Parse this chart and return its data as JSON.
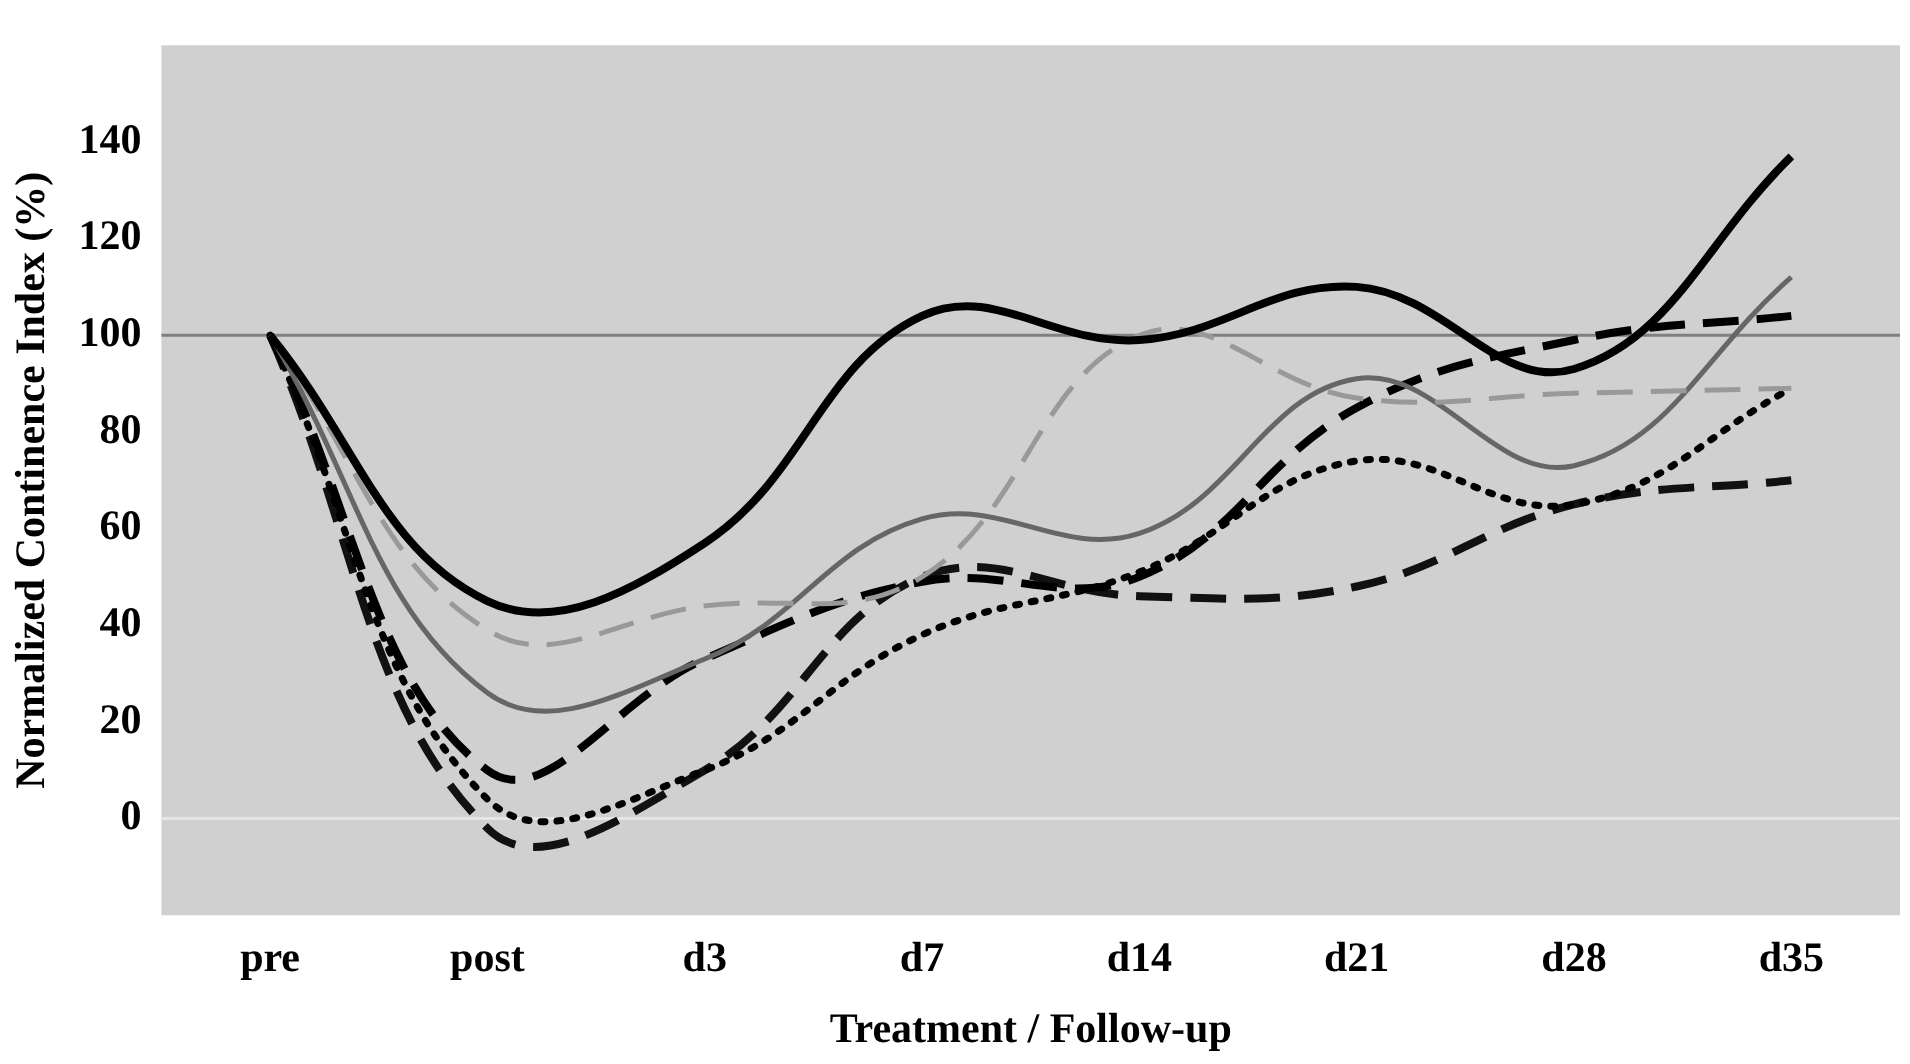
{
  "chart_data": {
    "type": "line",
    "xlabel": "Treatment / Follow-up",
    "ylabel": "Normalized Continence Index (%)",
    "categories": [
      "pre",
      "post",
      "d3",
      "d7",
      "d14",
      "d21",
      "d28",
      "d35"
    ],
    "series": [
      {
        "color": "#000000",
        "line_style": "solid",
        "values": [
          100,
          45,
          57,
          104,
          99,
          110,
          93,
          137
        ]
      },
      {
        "color": "#999999",
        "line_style": "dashed",
        "values": [
          100,
          39,
          44,
          50,
          100,
          87,
          88,
          89
        ]
      },
      {
        "color": "#666666",
        "line_style": "solid",
        "values": [
          100,
          26,
          33,
          62,
          59,
          91,
          73,
          112
        ]
      },
      {
        "color": "#000000",
        "line_style": "dashed",
        "values": [
          100,
          10,
          33,
          49,
          50,
          85,
          99,
          104
        ]
      },
      {
        "color": "#000000",
        "line_style": "dotted",
        "values": [
          100,
          4,
          10,
          38,
          51,
          74,
          65,
          89
        ]
      },
      {
        "color": "#111111",
        "line_style": "dashed",
        "values": [
          100,
          -2,
          10,
          50,
          46,
          48,
          65,
          70
        ]
      }
    ],
    "ylim": [
      -20,
      160
    ],
    "yticks": [
      0,
      20,
      40,
      60,
      80,
      100,
      120,
      140
    ],
    "ref_lines": [
      {
        "axis": "y",
        "value": 100,
        "color": "#808080"
      },
      {
        "axis": "y",
        "value": 0,
        "color": "#e6e6e6"
      }
    ],
    "grid": false,
    "legend": false,
    "marker": "none"
  }
}
